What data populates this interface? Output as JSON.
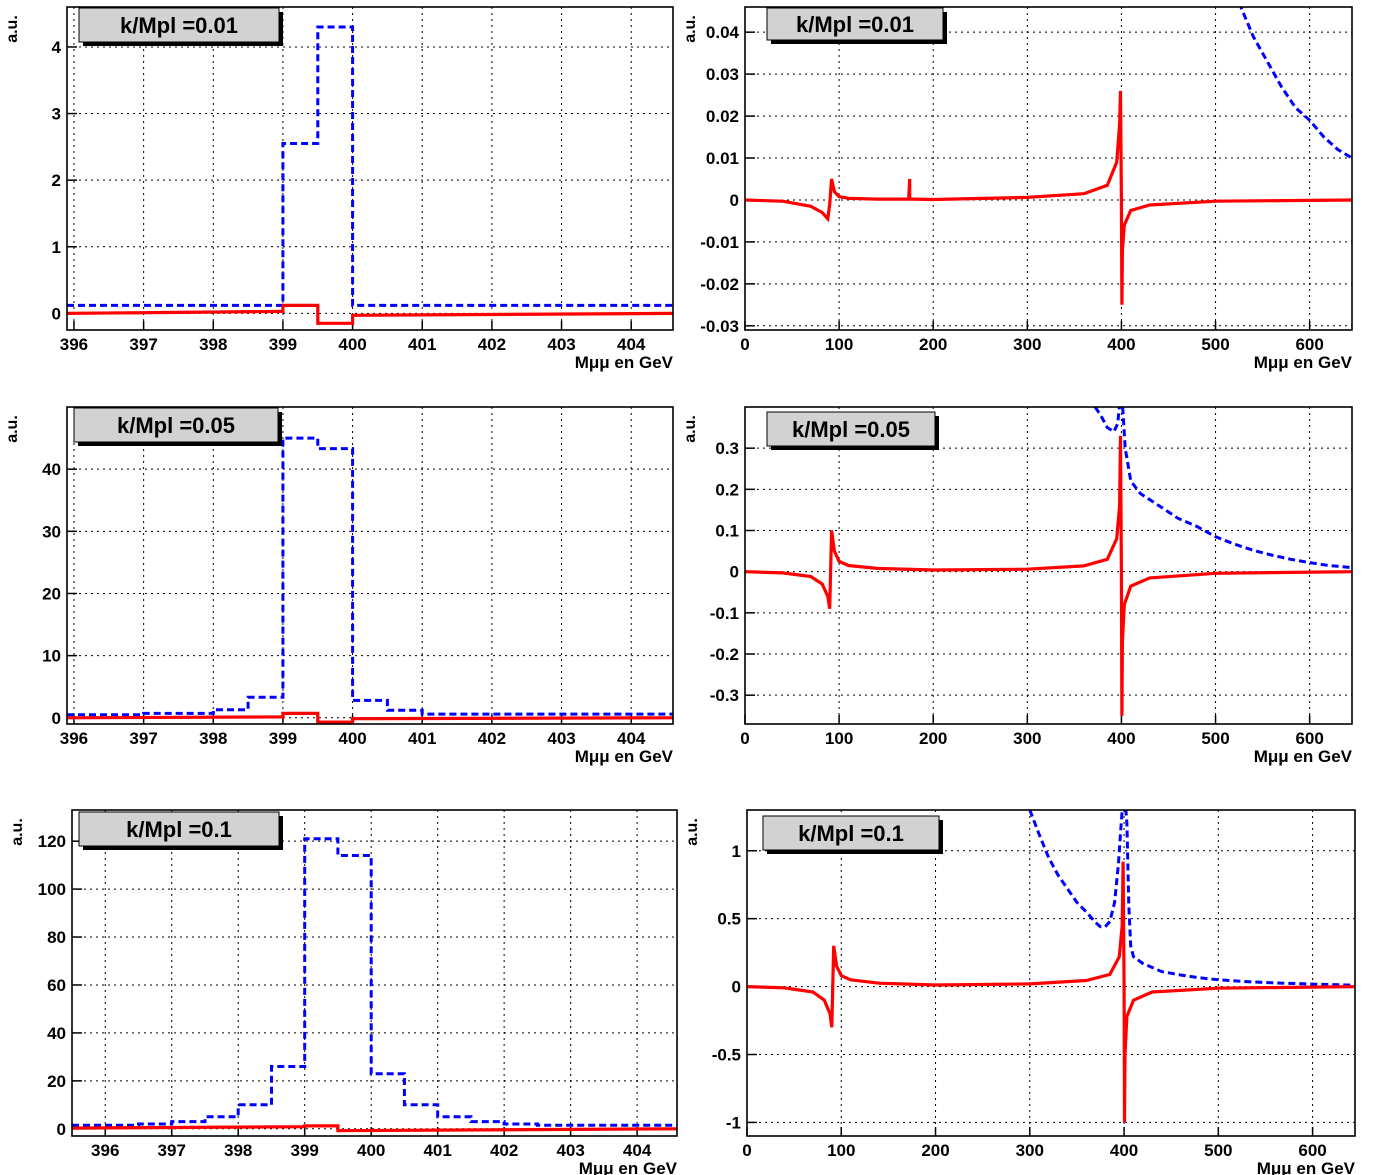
{
  "chart_data": [
    {
      "type": "line",
      "label": "k/Mpl =0.01",
      "xlabel": "Mμμ en GeV",
      "ylabel": "a.u.",
      "xlim": [
        395.9,
        404.6
      ],
      "ylim": [
        -0.25,
        4.6
      ],
      "x_ticks": [
        396,
        397,
        398,
        399,
        400,
        401,
        402,
        403,
        404
      ],
      "y_ticks": [
        0,
        1,
        2,
        3,
        4
      ],
      "y_tick_labels": [
        "0",
        "1",
        "2",
        "3",
        "4"
      ],
      "grid": true,
      "series": [
        {
          "color": "#0000ff",
          "style": "dashed",
          "step": true,
          "x": [
            395.9,
            399.0,
            399.0,
            399.5,
            399.5,
            400.0,
            400.0,
            404.6
          ],
          "y": [
            0.12,
            0.12,
            2.55,
            2.55,
            4.3,
            4.3,
            0.12,
            0.12
          ]
        },
        {
          "color": "#ff0000",
          "style": "solid",
          "step": true,
          "x": [
            395.9,
            399.0,
            399.0,
            399.5,
            399.5,
            400.0,
            400.0,
            404.6
          ],
          "y": [
            0.0,
            0.03,
            0.12,
            0.12,
            -0.15,
            -0.15,
            -0.03,
            0.0
          ]
        }
      ]
    },
    {
      "type": "line",
      "label": "k/Mpl =0.01",
      "xlabel": "Mμμ en GeV",
      "ylabel": "a.u.",
      "xlim": [
        0,
        645
      ],
      "ylim": [
        -0.031,
        0.046
      ],
      "x_ticks": [
        0,
        100,
        200,
        300,
        400,
        500,
        600
      ],
      "y_ticks": [
        -0.03,
        -0.02,
        -0.01,
        0,
        0.01,
        0.02,
        0.03,
        0.04
      ],
      "y_tick_labels": [
        "-0.03",
        "-0.02",
        "-0.01",
        "0",
        "0.01",
        "0.02",
        "0.03",
        "0.04"
      ],
      "grid": true,
      "series": [
        {
          "color": "#0000ff",
          "style": "dashed",
          "step": false,
          "x": [
            525,
            540,
            555,
            570,
            585,
            600,
            615,
            630,
            645
          ],
          "y": [
            0.047,
            0.039,
            0.033,
            0.027,
            0.022,
            0.019,
            0.015,
            0.012,
            0.01
          ]
        },
        {
          "color": "#ff0000",
          "style": "solid",
          "step": false,
          "x": [
            0,
            40,
            70,
            82,
            88,
            90,
            92,
            95,
            100,
            110,
            140,
            174,
            175,
            175,
            176,
            177,
            200,
            300,
            360,
            385,
            395,
            398,
            399,
            400,
            400.5,
            401,
            403,
            410,
            430,
            500,
            645
          ],
          "y": [
            0,
            -0.0003,
            -0.0015,
            -0.003,
            -0.0045,
            -0.001,
            0.005,
            0.002,
            0.0008,
            0.0004,
            0.0002,
            0.0002,
            0.005,
            0.0002,
            0.0002,
            0.0002,
            0.0001,
            0.0006,
            0.0015,
            0.0035,
            0.009,
            0.018,
            0.026,
            0,
            -0.025,
            -0.012,
            -0.006,
            -0.0025,
            -0.0012,
            -0.0003,
            0
          ]
        }
      ]
    },
    {
      "type": "line",
      "label": "k/Mpl =0.05",
      "xlabel": "Mμμ en GeV",
      "ylabel": "a.u.",
      "xlim": [
        395.9,
        404.6
      ],
      "ylim": [
        -1,
        50
      ],
      "x_ticks": [
        396,
        397,
        398,
        399,
        400,
        401,
        402,
        403,
        404
      ],
      "y_ticks": [
        0,
        10,
        20,
        30,
        40
      ],
      "y_tick_labels": [
        "0",
        "10",
        "20",
        "30",
        "40"
      ],
      "grid": true,
      "series": [
        {
          "color": "#0000ff",
          "style": "dashed",
          "step": true,
          "x": [
            395.9,
            397.0,
            397.0,
            398.0,
            398.0,
            398.5,
            398.5,
            399.0,
            399.0,
            399.5,
            399.5,
            400.0,
            400.0,
            400.5,
            400.5,
            401.0,
            401.0,
            404.6
          ],
          "y": [
            0.5,
            0.5,
            0.7,
            0.7,
            1.3,
            1.3,
            3.3,
            3.3,
            45.0,
            45.0,
            43.3,
            43.3,
            2.8,
            2.8,
            1.2,
            1.2,
            0.6,
            0.6
          ]
        },
        {
          "color": "#ff0000",
          "style": "solid",
          "step": true,
          "x": [
            395.9,
            399.0,
            399.0,
            399.5,
            399.5,
            400.0,
            400.0,
            404.6
          ],
          "y": [
            0.0,
            0.15,
            0.7,
            0.7,
            -0.7,
            -0.7,
            -0.15,
            0.0
          ]
        }
      ]
    },
    {
      "type": "line",
      "label": "k/Mpl =0.05",
      "xlabel": "Mμμ en GeV",
      "ylabel": "a.u.",
      "xlim": [
        0,
        645
      ],
      "ylim": [
        -0.37,
        0.4
      ],
      "x_ticks": [
        0,
        100,
        200,
        300,
        400,
        500,
        600
      ],
      "y_ticks": [
        -0.3,
        -0.2,
        -0.1,
        0,
        0.1,
        0.2,
        0.3
      ],
      "y_tick_labels": [
        "-0.3",
        "-0.2",
        "-0.1",
        "0",
        "0.1",
        "0.2",
        "0.3"
      ],
      "grid": true,
      "series": [
        {
          "color": "#0000ff",
          "style": "dashed",
          "step": false,
          "x": [
            372,
            378,
            385,
            392,
            396,
            400,
            404,
            410,
            420,
            440,
            460,
            480,
            500,
            520,
            540,
            560,
            580,
            600,
            620,
            645
          ],
          "y": [
            0.4,
            0.38,
            0.35,
            0.34,
            0.36,
            0.45,
            0.3,
            0.22,
            0.19,
            0.16,
            0.13,
            0.11,
            0.085,
            0.067,
            0.052,
            0.04,
            0.03,
            0.022,
            0.015,
            0.01
          ]
        },
        {
          "color": "#ff0000",
          "style": "solid",
          "step": false,
          "x": [
            0,
            40,
            70,
            82,
            88,
            90,
            92,
            95,
            100,
            110,
            140,
            200,
            300,
            360,
            385,
            395,
            398,
            399,
            400,
            400.5,
            401,
            403,
            410,
            430,
            500,
            645
          ],
          "y": [
            0,
            -0.003,
            -0.012,
            -0.03,
            -0.06,
            -0.09,
            0.1,
            0.05,
            0.025,
            0.015,
            0.008,
            0.004,
            0.006,
            0.014,
            0.03,
            0.08,
            0.16,
            0.33,
            0,
            -0.35,
            -0.17,
            -0.08,
            -0.035,
            -0.015,
            -0.004,
            0
          ]
        }
      ]
    },
    {
      "type": "line",
      "label": "k/Mpl =0.1",
      "xlabel": "Mμμ en GeV",
      "ylabel": "a.u.",
      "xlim": [
        395.5,
        404.6
      ],
      "ylim": [
        -3,
        133
      ],
      "x_ticks": [
        396,
        397,
        398,
        399,
        400,
        401,
        402,
        403,
        404
      ],
      "y_ticks": [
        0,
        20,
        40,
        60,
        80,
        100,
        120
      ],
      "y_tick_labels": [
        "0",
        "20",
        "40",
        "60",
        "80",
        "100",
        "120"
      ],
      "grid": true,
      "series": [
        {
          "color": "#0000ff",
          "style": "dashed",
          "step": true,
          "x": [
            395.5,
            396.5,
            396.5,
            397.0,
            397.0,
            397.5,
            397.5,
            398.0,
            398.0,
            398.5,
            398.5,
            399.0,
            399.0,
            399.5,
            399.5,
            400.0,
            400.0,
            400.5,
            400.5,
            401.0,
            401.0,
            401.5,
            401.5,
            402.0,
            402.0,
            402.5,
            402.5,
            404.6
          ],
          "y": [
            1.5,
            1.5,
            2.0,
            2.0,
            3.0,
            3.0,
            5.0,
            5.0,
            10.0,
            10.0,
            26.0,
            26.0,
            121.0,
            121.0,
            114.0,
            114.0,
            23.0,
            23.0,
            10.0,
            10.0,
            5.0,
            5.0,
            3.0,
            3.0,
            2.0,
            2.0,
            1.5,
            1.5
          ]
        },
        {
          "color": "#ff0000",
          "style": "solid",
          "step": true,
          "x": [
            395.5,
            399.0,
            399.0,
            399.5,
            399.5,
            404.6
          ],
          "y": [
            0.3,
            0.9,
            1.2,
            1.2,
            -0.8,
            0.0
          ]
        }
      ]
    },
    {
      "type": "line",
      "label": "k/Mpl =0.1",
      "xlabel": "Mμμ en GeV",
      "ylabel": "a.u.",
      "xlim": [
        0,
        645
      ],
      "ylim": [
        -1.1,
        1.3
      ],
      "x_ticks": [
        0,
        100,
        200,
        300,
        400,
        500,
        600
      ],
      "y_ticks": [
        -1,
        -0.5,
        0,
        0.5,
        1
      ],
      "y_tick_labels": [
        "-1",
        "-0.5",
        "0",
        "0.5",
        "1"
      ],
      "grid": true,
      "series": [
        {
          "color": "#0000ff",
          "style": "dashed",
          "step": false,
          "x": [
            300,
            310,
            320,
            330,
            340,
            350,
            360,
            370,
            375,
            380,
            385,
            390,
            394,
            397,
            398,
            400,
            402,
            403,
            405,
            407,
            410,
            420,
            440,
            460,
            480,
            500,
            530,
            560,
            600,
            645
          ],
          "y": [
            1.3,
            1.12,
            0.95,
            0.82,
            0.72,
            0.62,
            0.55,
            0.47,
            0.44,
            0.44,
            0.48,
            0.62,
            0.9,
            1.2,
            1.3,
            1.35,
            1.3,
            1.2,
            0.6,
            0.3,
            0.22,
            0.17,
            0.11,
            0.085,
            0.065,
            0.05,
            0.037,
            0.027,
            0.018,
            0.01
          ]
        },
        {
          "color": "#ff0000",
          "style": "solid",
          "step": false,
          "x": [
            0,
            40,
            70,
            82,
            88,
            90,
            92,
            95,
            100,
            110,
            140,
            200,
            300,
            360,
            385,
            395,
            398,
            399,
            400,
            400.5,
            401,
            403,
            410,
            430,
            500,
            645
          ],
          "y": [
            0,
            -0.01,
            -0.04,
            -0.1,
            -0.2,
            -0.3,
            0.3,
            0.15,
            0.08,
            0.05,
            0.025,
            0.012,
            0.02,
            0.045,
            0.09,
            0.22,
            0.45,
            0.92,
            0,
            -1.0,
            -0.5,
            -0.22,
            -0.1,
            -0.04,
            -0.012,
            0
          ]
        }
      ]
    }
  ]
}
